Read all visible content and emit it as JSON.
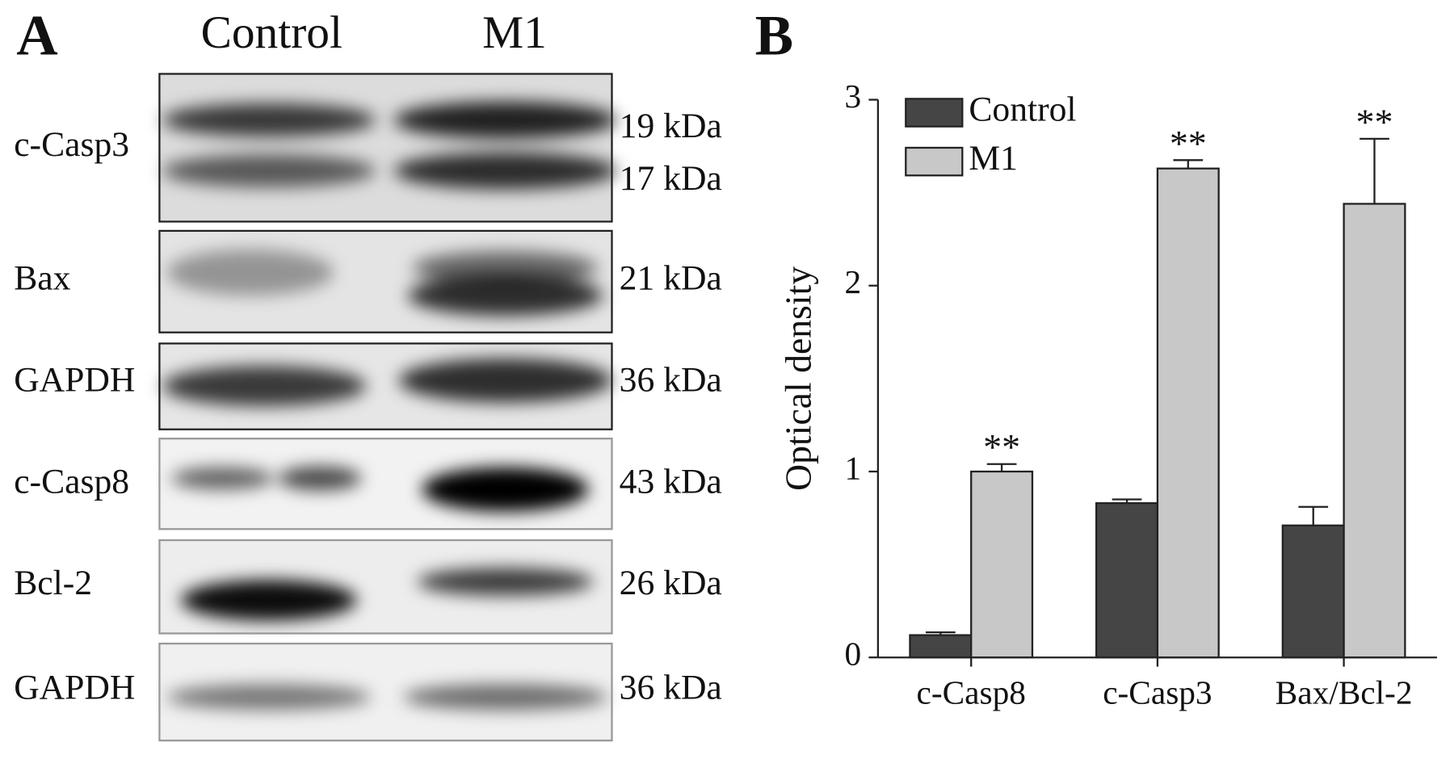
{
  "panel_a": {
    "label": "A",
    "lanes": [
      "Control",
      "M1"
    ],
    "rows": [
      {
        "protein": "c-Casp3",
        "sizes": [
          "19 kDa",
          "17 kDa"
        ]
      },
      {
        "protein": "Bax",
        "sizes": [
          "21 kDa"
        ]
      },
      {
        "protein": "GAPDH",
        "sizes": [
          "36 kDa"
        ]
      },
      {
        "protein": "c-Casp8",
        "sizes": [
          "43 kDa"
        ]
      },
      {
        "protein": "Bcl-2",
        "sizes": [
          "26 kDa"
        ]
      },
      {
        "protein": "GAPDH",
        "sizes": [
          "36 kDa"
        ]
      }
    ]
  },
  "chart_data": {
    "type": "bar",
    "panel_label": "B",
    "ylabel": "Optical density",
    "categories": [
      "c-Casp8",
      "c-Casp3",
      "Bax/Bcl-2"
    ],
    "series": [
      {
        "name": "Control",
        "color": "#454545",
        "values": [
          0.12,
          0.83,
          0.71
        ],
        "errors": [
          0.015,
          0.02,
          0.1
        ]
      },
      {
        "name": "M1",
        "color": "#c8c8c8",
        "values": [
          1.0,
          2.63,
          2.44
        ],
        "errors": [
          0.04,
          0.045,
          0.35
        ]
      }
    ],
    "annotations": [
      "**",
      "**",
      "**"
    ],
    "ylim": [
      0,
      3
    ],
    "yticks": [
      0,
      1,
      2,
      3
    ],
    "grid": false,
    "legend": "upper left"
  }
}
